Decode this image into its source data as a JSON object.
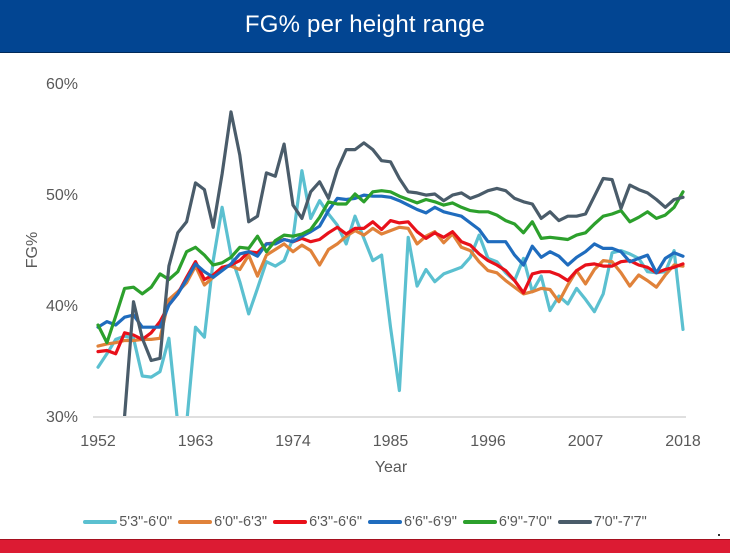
{
  "header": {
    "title": "FG% per height range"
  },
  "colors": {
    "header_bg": "#024592",
    "footer_bg": "#dc1b33"
  },
  "chart_data": {
    "type": "line",
    "title": "FG% per height range",
    "xlabel": "Year",
    "ylabel": "FG%",
    "ylim": [
      30,
      60
    ],
    "xlim": [
      1952,
      2018
    ],
    "y_ticks": [
      "30%",
      "40%",
      "50%",
      "60%"
    ],
    "y_tick_values": [
      30,
      40,
      50,
      60
    ],
    "x_ticks": [
      "1952",
      "1963",
      "1974",
      "1985",
      "1996",
      "2007",
      "2018"
    ],
    "x_tick_values": [
      1952,
      1963,
      1974,
      1985,
      1996,
      2007,
      2018
    ],
    "grid": false,
    "legend_position": "bottom",
    "x": [
      1952,
      1953,
      1954,
      1955,
      1956,
      1957,
      1958,
      1959,
      1960,
      1961,
      1962,
      1963,
      1964,
      1965,
      1966,
      1967,
      1968,
      1969,
      1970,
      1971,
      1972,
      1973,
      1974,
      1975,
      1976,
      1977,
      1978,
      1979,
      1980,
      1981,
      1982,
      1983,
      1984,
      1985,
      1986,
      1987,
      1988,
      1989,
      1990,
      1991,
      1992,
      1993,
      1994,
      1995,
      1996,
      1997,
      1998,
      1999,
      2000,
      2001,
      2002,
      2003,
      2004,
      2005,
      2006,
      2007,
      2008,
      2009,
      2010,
      2011,
      2012,
      2013,
      2014,
      2015,
      2016,
      2017,
      2018
    ],
    "series": [
      {
        "name": "5'3\"-6'0\"",
        "color": "#5bc0d0",
        "values": [
          34.4,
          35.6,
          36.9,
          37.2,
          37.0,
          33.6,
          33.5,
          34.0,
          37.0,
          29.0,
          29.0,
          38.0,
          37.1,
          44.0,
          48.8,
          44.5,
          42.1,
          39.2,
          41.5,
          43.9,
          43.5,
          44.0,
          46.0,
          52.1,
          47.8,
          49.4,
          48.2,
          47.2,
          45.5,
          48.0,
          46.0,
          44.0,
          44.5,
          38.0,
          32.3,
          46.1,
          41.7,
          43.2,
          42.1,
          42.8,
          43.1,
          43.4,
          44.3,
          46.3,
          44.2,
          43.9,
          42.9,
          42.2,
          44.2,
          41.2,
          42.6,
          39.5,
          40.8,
          40.1,
          41.5,
          40.5,
          39.4,
          41.0,
          44.7,
          44.9,
          44.6,
          44.2,
          43.0,
          42.9,
          43.0,
          44.9,
          37.8
        ]
      },
      {
        "name": "6'0\"-6'3\"",
        "color": "#e0823a",
        "values": [
          36.3,
          36.5,
          36.6,
          36.8,
          36.8,
          36.9,
          36.9,
          37.0,
          40.5,
          41.2,
          42.0,
          43.5,
          41.8,
          42.5,
          43.4,
          43.5,
          43.2,
          44.5,
          42.6,
          44.5,
          45.0,
          45.5,
          44.8,
          45.4,
          44.9,
          43.6,
          45.0,
          45.5,
          46.2,
          46.7,
          46.3,
          46.9,
          46.4,
          46.7,
          47.0,
          46.9,
          45.5,
          46.2,
          46.6,
          45.6,
          46.4,
          45.2,
          44.9,
          43.9,
          43.1,
          42.9,
          42.2,
          41.6,
          41.0,
          41.2,
          41.5,
          41.4,
          40.3,
          41.8,
          43.1,
          41.9,
          43.2,
          44.0,
          43.9,
          42.9,
          41.7,
          42.7,
          42.2,
          41.6,
          42.7,
          43.6,
          43.5
        ]
      },
      {
        "name": "6'3\"-6'6\"",
        "color": "#e8111a",
        "values": [
          35.8,
          35.9,
          35.6,
          37.5,
          37.3,
          36.9,
          37.5,
          38.5,
          40.0,
          41.0,
          42.5,
          43.9,
          42.3,
          42.7,
          43.4,
          43.6,
          44.0,
          44.8,
          44.7,
          45.5,
          45.6,
          45.9,
          45.7,
          46.0,
          45.7,
          45.9,
          46.5,
          47.0,
          46.4,
          46.9,
          46.9,
          47.5,
          46.8,
          47.6,
          47.4,
          47.5,
          46.6,
          46.0,
          46.5,
          46.1,
          46.6,
          45.7,
          45.4,
          44.6,
          44.0,
          43.6,
          43.1,
          42.2,
          41.1,
          42.8,
          43.0,
          43.0,
          42.7,
          42.2,
          43.1,
          43.6,
          43.7,
          43.5,
          43.5,
          43.9,
          44.0,
          43.6,
          43.4,
          42.9,
          43.2,
          43.4,
          43.7
        ]
      },
      {
        "name": "6'6\"-6'9\"",
        "color": "#1f6cbe",
        "values": [
          38.0,
          38.5,
          38.2,
          38.9,
          39.1,
          38.0,
          38.0,
          38.0,
          40.0,
          41.0,
          42.3,
          43.7,
          43.0,
          42.5,
          43.1,
          43.7,
          44.6,
          44.8,
          44.4,
          45.5,
          45.5,
          45.9,
          45.7,
          46.2,
          46.6,
          47.1,
          48.5,
          49.6,
          49.5,
          49.6,
          49.9,
          49.8,
          49.8,
          49.7,
          49.4,
          49.0,
          48.6,
          48.3,
          48.8,
          48.4,
          48.2,
          48.0,
          47.4,
          46.8,
          45.7,
          45.7,
          45.7,
          44.5,
          43.6,
          45.3,
          44.3,
          44.8,
          44.4,
          43.6,
          44.3,
          44.8,
          45.5,
          45.1,
          45.1,
          44.8,
          43.9,
          44.2,
          44.5,
          42.9,
          44.2,
          44.7,
          44.4
        ]
      },
      {
        "name": "6'9\"-7'0\"",
        "color": "#2ca02c",
        "values": [
          38.2,
          36.6,
          39.0,
          41.5,
          41.6,
          41.0,
          41.6,
          42.8,
          42.3,
          43.0,
          44.8,
          45.2,
          44.5,
          43.6,
          43.8,
          44.3,
          45.2,
          45.1,
          46.2,
          44.8,
          45.8,
          46.3,
          46.2,
          46.4,
          46.8,
          47.9,
          49.3,
          49.1,
          49.1,
          50.0,
          49.3,
          50.2,
          50.3,
          50.2,
          49.8,
          49.5,
          49.2,
          49.5,
          49.3,
          49.0,
          49.2,
          48.8,
          48.5,
          48.4,
          48.4,
          48.1,
          47.6,
          47.3,
          46.5,
          47.5,
          46.0,
          46.1,
          46.0,
          45.9,
          46.3,
          46.5,
          47.3,
          48.0,
          48.2,
          48.5,
          47.5,
          47.9,
          48.4,
          47.8,
          48.1,
          48.8,
          50.2
        ]
      },
      {
        "name": "7'0\"-7'7\"",
        "color": "#4a5c6a",
        "values": [
          null,
          null,
          null,
          30.0,
          40.3,
          37.0,
          35.0,
          35.2,
          43.5,
          46.5,
          47.5,
          51.0,
          50.4,
          47.0,
          51.8,
          57.4,
          53.5,
          47.5,
          48.0,
          51.9,
          51.6,
          54.5,
          49.0,
          47.8,
          50.2,
          51.1,
          49.6,
          52.2,
          54.0,
          54.0,
          54.6,
          54.0,
          53.0,
          52.9,
          51.4,
          50.2,
          50.1,
          49.9,
          50.0,
          49.4,
          49.9,
          50.1,
          49.6,
          49.9,
          50.3,
          50.5,
          50.3,
          49.6,
          49.3,
          49.1,
          47.8,
          48.4,
          47.6,
          48.0,
          48.0,
          48.2,
          49.8,
          51.4,
          51.3,
          48.7,
          50.8,
          50.4,
          50.1,
          49.5,
          48.8,
          49.5,
          49.7
        ]
      }
    ]
  }
}
